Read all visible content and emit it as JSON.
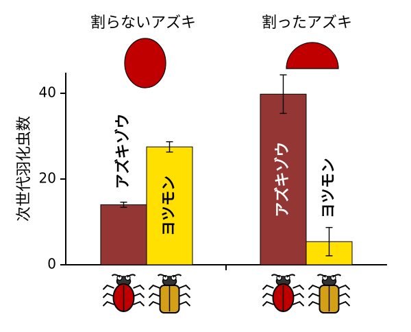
{
  "chart_data": {
    "type": "bar",
    "ylabel": "次世代羽化虫数",
    "ylim": [
      0,
      40
    ],
    "yticks": [
      0,
      20,
      40
    ],
    "groups": [
      {
        "title": "割らないアズキ",
        "seed_shape": "whole-seed"
      },
      {
        "title": "割ったアズキ",
        "seed_shape": "split-seed"
      }
    ],
    "series": [
      {
        "name": "アズキゾウ",
        "color": "#943634",
        "label_color": "#000000",
        "inside_label_color": "#ffffff",
        "values": [
          14,
          39.8
        ],
        "errors": [
          0.6,
          4.5
        ],
        "icon": "red-beetle"
      },
      {
        "name": "ヨツモン",
        "color": "#FFE000",
        "label_color": "#000000",
        "inside_label_color": "#000000",
        "values": [
          27.5,
          5.4
        ],
        "errors": [
          1.2,
          3.3
        ],
        "icon": "tan-beetle"
      }
    ],
    "grid": false,
    "legend": "none"
  },
  "colors": {
    "seed_red": "#C00000",
    "beetle_red": "#C00000",
    "beetle_tan": "#D4A017"
  }
}
